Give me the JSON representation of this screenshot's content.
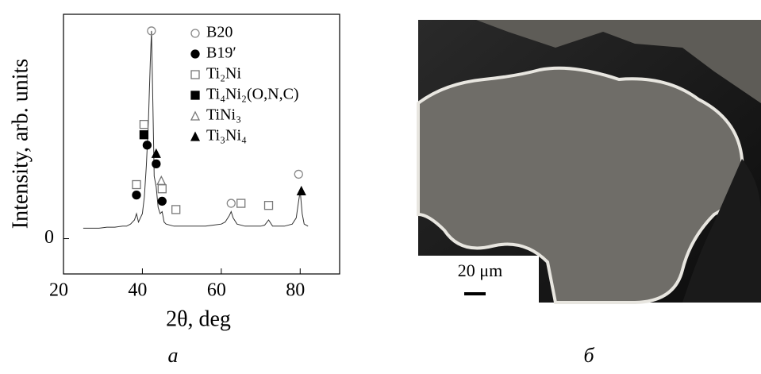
{
  "chart_data": {
    "type": "line",
    "xlabel": "2θ, deg",
    "ylabel": "Intensity, arb. units",
    "xlim": [
      20,
      90
    ],
    "xticks": [
      20,
      40,
      60,
      80
    ],
    "ylim": [
      -0.17,
      1.08
    ],
    "yticks": [
      0
    ],
    "color": "#333333",
    "x": [
      25,
      27,
      29,
      31,
      33,
      35,
      36,
      37,
      38,
      38.5,
      39,
      40,
      40.5,
      41,
      41.5,
      42,
      42.3,
      42.6,
      43,
      43.5,
      44,
      44.5,
      45,
      45.5,
      46,
      48,
      50,
      52,
      54,
      56,
      58,
      60,
      61,
      62,
      62.5,
      63,
      64,
      66,
      68,
      70,
      71,
      72,
      73,
      74,
      76,
      78,
      79,
      79.6,
      80,
      80.5,
      81,
      82
    ],
    "values": [
      0.05,
      0.05,
      0.05,
      0.055,
      0.055,
      0.06,
      0.06,
      0.07,
      0.09,
      0.12,
      0.08,
      0.12,
      0.2,
      0.35,
      0.55,
      0.85,
      1.0,
      0.7,
      0.3,
      0.25,
      0.15,
      0.12,
      0.13,
      0.08,
      0.07,
      0.06,
      0.06,
      0.06,
      0.06,
      0.06,
      0.065,
      0.07,
      0.08,
      0.11,
      0.13,
      0.1,
      0.07,
      0.06,
      0.06,
      0.06,
      0.065,
      0.09,
      0.06,
      0.06,
      0.06,
      0.07,
      0.1,
      0.18,
      0.23,
      0.12,
      0.07,
      0.06
    ],
    "series": [
      {
        "name": "B20",
        "marker": "open-circle",
        "color": "#888888",
        "x": [
          42.3,
          62.5,
          79.6
        ],
        "values": [
          1.0,
          0.17,
          0.31
        ]
      },
      {
        "name": "B19′",
        "marker": "filled-circle",
        "color": "#000000",
        "x": [
          38.5,
          41.2,
          43.5,
          45
        ],
        "values": [
          0.21,
          0.45,
          0.36,
          0.18
        ]
      },
      {
        "name": "Ti₂Ni",
        "marker": "open-square",
        "color": "#777777",
        "x": [
          38.5,
          40.4,
          45,
          48.5,
          65,
          72
        ],
        "values": [
          0.26,
          0.55,
          0.24,
          0.14,
          0.17,
          0.16
        ]
      },
      {
        "name": "Ti₄Ni₂(O,N,C)",
        "marker": "filled-square",
        "color": "#000000",
        "x": [
          40.4
        ],
        "values": [
          0.5
        ]
      },
      {
        "name": "TiNi₃",
        "marker": "open-triangle",
        "color": "#777777",
        "x": [
          44.8
        ],
        "values": [
          0.28
        ]
      },
      {
        "name": "Ti₃Ni₄",
        "marker": "filled-triangle",
        "color": "#000000",
        "x": [
          43.5,
          80.3
        ],
        "values": [
          0.41,
          0.23
        ]
      }
    ]
  },
  "panels": {
    "a": "а",
    "b": "б"
  },
  "image": {
    "scale_bar": "20 μm"
  }
}
